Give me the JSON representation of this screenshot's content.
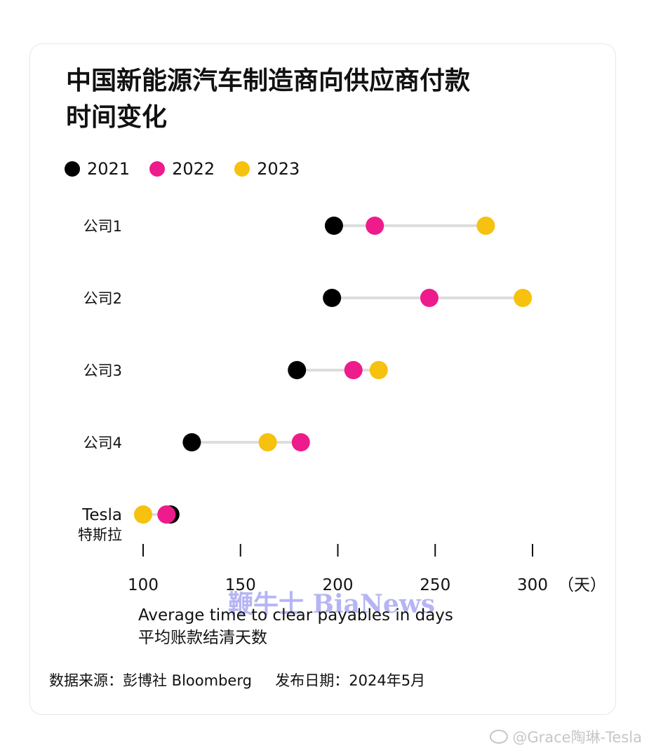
{
  "title_lines": [
    "中国新能源汽车制造商向供应商付款",
    "时间变化"
  ],
  "legend": [
    {
      "label": "2021",
      "color": "#000000"
    },
    {
      "label": "2022",
      "color": "#ee1b8c"
    },
    {
      "label": "2023",
      "color": "#f6c10f"
    }
  ],
  "xlabel_en": "Average time to clear payables in days",
  "xlabel_cn": "平均账款结清天数",
  "x_unit": "（天）",
  "source": "数据来源：彭博社 Bloomberg     发布日期：2024年5月",
  "watermark": "鞭牛士 BiaNews",
  "credit": "@Grace陶琳-Tesla",
  "chart_data": {
    "type": "dot-plot",
    "xlim": [
      100,
      300
    ],
    "xticks": [
      100,
      150,
      200,
      250,
      300
    ],
    "rows": [
      {
        "label": "公司1",
        "sublabel": "",
        "values": {
          "2021": 198,
          "2022": 219,
          "2023": 276
        }
      },
      {
        "label": "公司2",
        "sublabel": "",
        "values": {
          "2021": 197,
          "2022": 247,
          "2023": 295
        }
      },
      {
        "label": "公司3",
        "sublabel": "",
        "values": {
          "2021": 179,
          "2022": 208,
          "2023": 221
        }
      },
      {
        "label": "公司4",
        "sublabel": "",
        "values": {
          "2021": 125,
          "2022": 181,
          "2023": 164
        }
      },
      {
        "label": "Tesla",
        "sublabel": "特斯拉",
        "values": {
          "2021": 114,
          "2022": 112,
          "2023": 100
        }
      }
    ],
    "series_order": [
      "2021",
      "2023",
      "2022"
    ]
  }
}
